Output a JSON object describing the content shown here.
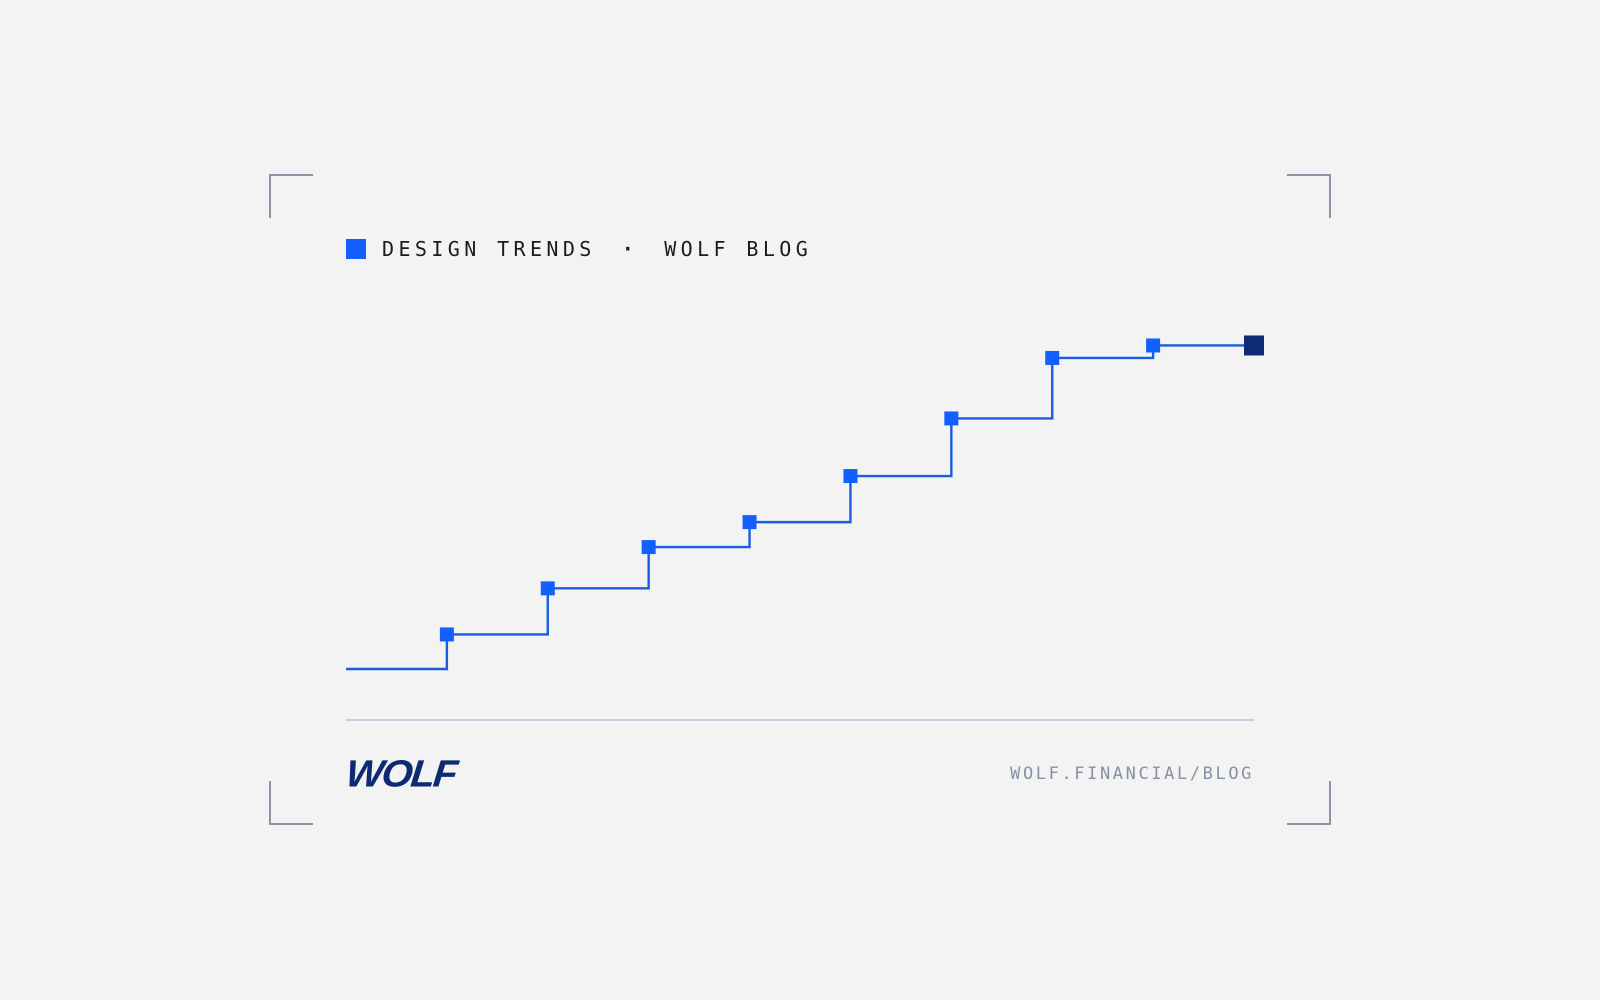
{
  "header": {
    "category": "DESIGN TRENDS",
    "separator": "·",
    "publication": "WOLF BLOG"
  },
  "footer": {
    "logo_text": "WOLF",
    "url": "WOLF.FINANCIAL/BLOG"
  },
  "colors": {
    "background": "#f3f3f3",
    "accent_blue": "#1260ff",
    "line_blue": "#1a5de0",
    "final_marker": "#0e2a73",
    "divider": "#c9cde0",
    "frame": "#8a94a6"
  },
  "chart_data": {
    "type": "line",
    "step": true,
    "x": [
      0,
      1,
      2,
      3,
      4,
      5,
      6,
      7,
      8,
      9
    ],
    "values": [
      0,
      3.6,
      8.4,
      12.7,
      15.3,
      20.1,
      26.1,
      32.4,
      33.7,
      33.7
    ],
    "ylim": [
      0,
      35
    ],
    "markers": true,
    "final_marker_highlight": true,
    "grid": false,
    "title": "",
    "xlabel": "",
    "ylabel": ""
  }
}
